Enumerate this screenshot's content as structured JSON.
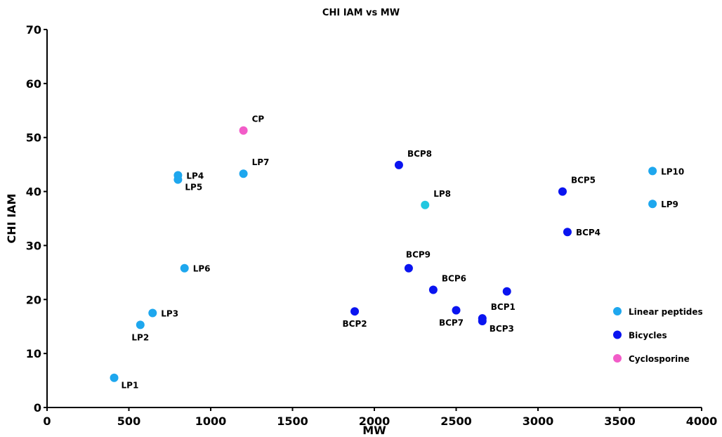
{
  "chart_data": {
    "type": "scatter",
    "title": "CHI IAM vs MW",
    "xlabel": "MW",
    "ylabel": "CHI IAM",
    "xlim": [
      0,
      4000
    ],
    "ylim": [
      0,
      70
    ],
    "xticks": [
      0,
      500,
      1000,
      1500,
      2000,
      2500,
      3000,
      3500,
      4000
    ],
    "yticks": [
      0,
      10,
      20,
      30,
      40,
      50,
      60,
      70
    ],
    "grid": false,
    "legend_position": "right",
    "legend": [
      {
        "name": "Linear peptides",
        "color": "#1EA7EE"
      },
      {
        "name": "Bicycles",
        "color": "#0A14F0"
      },
      {
        "name": "Cyclosporine",
        "color": "#F25CC8"
      }
    ],
    "points": [
      {
        "label": "LP1",
        "x": 410,
        "y": 5.5,
        "group": "Linear peptides",
        "color": "#1EA7EE",
        "anchor": "right-below"
      },
      {
        "label": "LP2",
        "x": 570,
        "y": 15.3,
        "group": "Linear peptides",
        "color": "#1EA7EE",
        "anchor": "below"
      },
      {
        "label": "LP3",
        "x": 645,
        "y": 17.5,
        "group": "Linear peptides",
        "color": "#1EA7EE",
        "anchor": "right"
      },
      {
        "label": "LP4",
        "x": 800,
        "y": 43.0,
        "group": "Linear peptides",
        "color": "#1EA7EE",
        "anchor": "right"
      },
      {
        "label": "LP5",
        "x": 800,
        "y": 42.2,
        "group": "Linear peptides",
        "color": "#1EA7EE",
        "anchor": "right-below"
      },
      {
        "label": "LP6",
        "x": 840,
        "y": 25.8,
        "group": "Linear peptides",
        "color": "#1EA7EE",
        "anchor": "right"
      },
      {
        "label": "LP7",
        "x": 1200,
        "y": 43.3,
        "group": "Linear peptides",
        "color": "#1EA7EE",
        "anchor": "right-above"
      },
      {
        "label": "LP8",
        "x": 2310,
        "y": 37.5,
        "group": "Linear peptides",
        "color": "#22C8E0",
        "anchor": "right-above"
      },
      {
        "label": "LP9",
        "x": 3700,
        "y": 37.7,
        "group": "Linear peptides",
        "color": "#1EA7EE",
        "anchor": "right"
      },
      {
        "label": "LP10",
        "x": 3700,
        "y": 43.8,
        "group": "Linear peptides",
        "color": "#1EA7EE",
        "anchor": "right"
      },
      {
        "label": "CP",
        "x": 1200,
        "y": 51.3,
        "group": "Cyclosporine",
        "color": "#F25CC8",
        "anchor": "right-above"
      },
      {
        "label": "BCP1",
        "x": 2660,
        "y": 16.5,
        "group": "Bicycles",
        "color": "#0A14F0",
        "anchor": "right-above"
      },
      {
        "label": "BCP2",
        "x": 1880,
        "y": 17.8,
        "group": "Bicycles",
        "color": "#0A14F0",
        "anchor": "below"
      },
      {
        "label": "BCP3",
        "x": 2660,
        "y": 16.0,
        "group": "Bicycles",
        "color": "#0A14F0",
        "anchor": "right-below"
      },
      {
        "label": "BCP4",
        "x": 3180,
        "y": 32.5,
        "group": "Bicycles",
        "color": "#0A14F0",
        "anchor": "right"
      },
      {
        "label": "BCP5",
        "x": 3150,
        "y": 40.0,
        "group": "Bicycles",
        "color": "#0A14F0",
        "anchor": "right-above"
      },
      {
        "label": "BCP6",
        "x": 2360,
        "y": 21.8,
        "group": "Bicycles",
        "color": "#0A14F0",
        "anchor": "right-above"
      },
      {
        "label": "BCP7",
        "x": 2500,
        "y": 18.0,
        "group": "Bicycles",
        "color": "#0A14F0",
        "anchor": "below-left"
      },
      {
        "label": "BCP8",
        "x": 2150,
        "y": 44.9,
        "group": "Bicycles",
        "color": "#0A14F0",
        "anchor": "right-above"
      },
      {
        "label": "BCP9",
        "x": 2210,
        "y": 25.8,
        "group": "Bicycles",
        "color": "#0A14F0",
        "anchor": "above"
      },
      {
        "label": "",
        "x": 2810,
        "y": 21.5,
        "group": "Bicycles",
        "color": "#0A14F0",
        "anchor": "none"
      }
    ]
  }
}
